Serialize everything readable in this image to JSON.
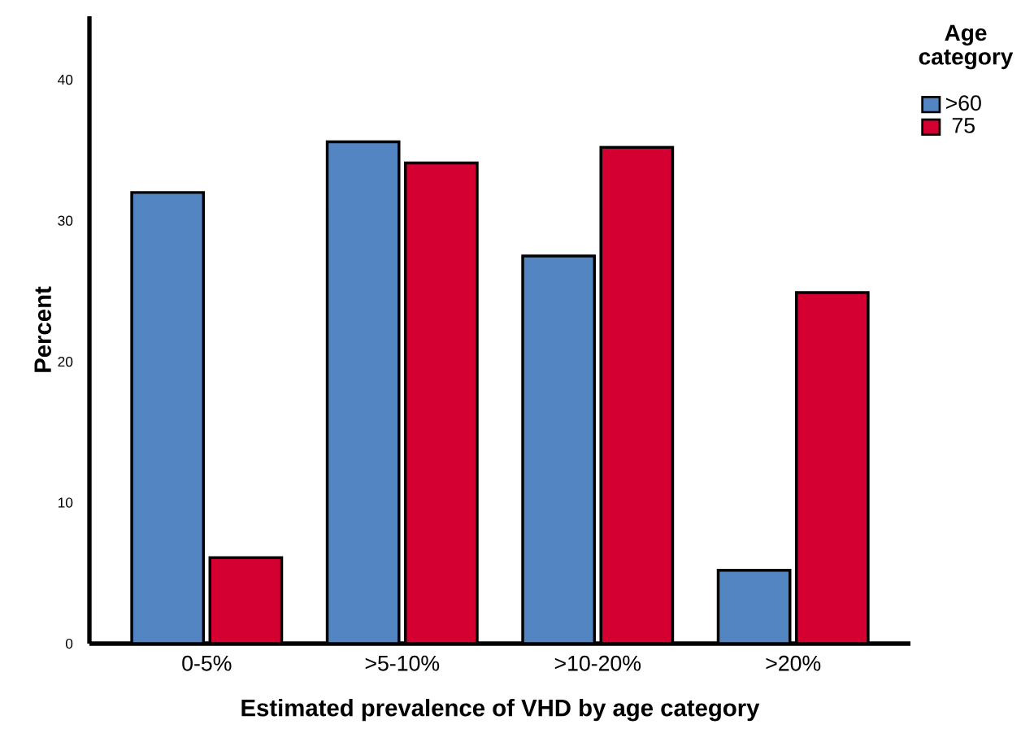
{
  "chart_data": {
    "type": "bar",
    "xlabel": "Estimated prevalence of VHD by age category",
    "ylabel": "Percent",
    "legend_title": "Age category",
    "categories": [
      "0-5%",
      ">5-10%",
      ">10-20%",
      ">20%"
    ],
    "series": [
      {
        "name": ">60",
        "color": "#5385c2",
        "values": [
          32.0,
          35.6,
          27.5,
          5.2
        ]
      },
      {
        "name": "75",
        "color": "#d40032",
        "values": [
          6.1,
          34.1,
          35.2,
          24.9
        ]
      }
    ],
    "ylim": [
      0,
      44.5
    ],
    "yticks": [
      0,
      10,
      20,
      30,
      40
    ],
    "grid": false,
    "legend": "top right"
  }
}
